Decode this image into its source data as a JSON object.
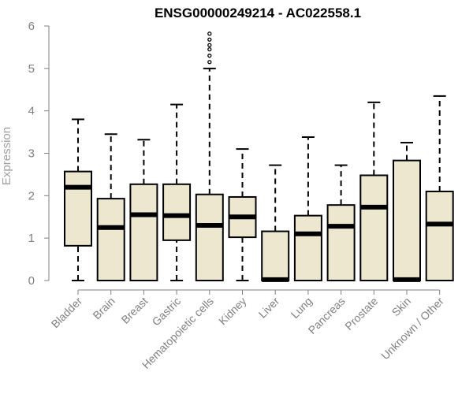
{
  "chart_data": {
    "type": "box",
    "title": "ENSG00000249214 - AC022558.1",
    "ylabel": "Expression",
    "xlabel": "",
    "ylim": [
      0,
      6
    ],
    "yticks": [
      "0",
      "1",
      "2",
      "3",
      "4",
      "5",
      "6"
    ],
    "grid": false,
    "colors": {
      "box_fill": "#ede7cf",
      "box_stroke": "#000000",
      "axis": "#808080",
      "tick_labels": "#808080",
      "title": "#000000"
    },
    "categories": [
      "Bladder",
      "Brain",
      "Breast",
      "Gastric",
      "Hematopoietic cells",
      "Kidney",
      "Liver",
      "Lung",
      "Pancreas",
      "Prostate",
      "Skin",
      "Unknown / Other"
    ],
    "boxes": [
      {
        "category": "Bladder",
        "min": 0,
        "q1": 0.82,
        "median": 2.2,
        "q3": 2.57,
        "max": 3.8,
        "outliers": []
      },
      {
        "category": "Brain",
        "min": 0,
        "q1": 0,
        "median": 1.25,
        "q3": 1.93,
        "max": 3.45,
        "outliers": []
      },
      {
        "category": "Breast",
        "min": 0,
        "q1": 0,
        "median": 1.55,
        "q3": 2.27,
        "max": 3.32,
        "outliers": []
      },
      {
        "category": "Gastric",
        "min": 0,
        "q1": 0.95,
        "median": 1.53,
        "q3": 2.27,
        "max": 4.15,
        "outliers": []
      },
      {
        "category": "Hematopoietic cells",
        "min": 0,
        "q1": 0,
        "median": 1.3,
        "q3": 2.03,
        "max": 5.0,
        "outliers": [
          5.15,
          5.3,
          5.45,
          5.55,
          5.68,
          5.82
        ]
      },
      {
        "category": "Kidney",
        "min": 0,
        "q1": 1.02,
        "median": 1.5,
        "q3": 1.97,
        "max": 3.1,
        "outliers": []
      },
      {
        "category": "Liver",
        "min": 0,
        "q1": 0,
        "median": 0.02,
        "q3": 1.16,
        "max": 2.72,
        "outliers": []
      },
      {
        "category": "Lung",
        "min": 0,
        "q1": 0,
        "median": 1.1,
        "q3": 1.53,
        "max": 3.38,
        "outliers": []
      },
      {
        "category": "Pancreas",
        "min": 0,
        "q1": 0,
        "median": 1.28,
        "q3": 1.78,
        "max": 2.72,
        "outliers": []
      },
      {
        "category": "Prostate",
        "min": 0,
        "q1": 0,
        "median": 1.73,
        "q3": 2.48,
        "max": 4.2,
        "outliers": []
      },
      {
        "category": "Skin",
        "min": 0,
        "q1": 0,
        "median": 0.02,
        "q3": 2.83,
        "max": 3.25,
        "outliers": []
      },
      {
        "category": "Unknown / Other",
        "min": 0,
        "q1": 0,
        "median": 1.33,
        "q3": 2.1,
        "max": 4.35,
        "outliers": []
      }
    ]
  }
}
